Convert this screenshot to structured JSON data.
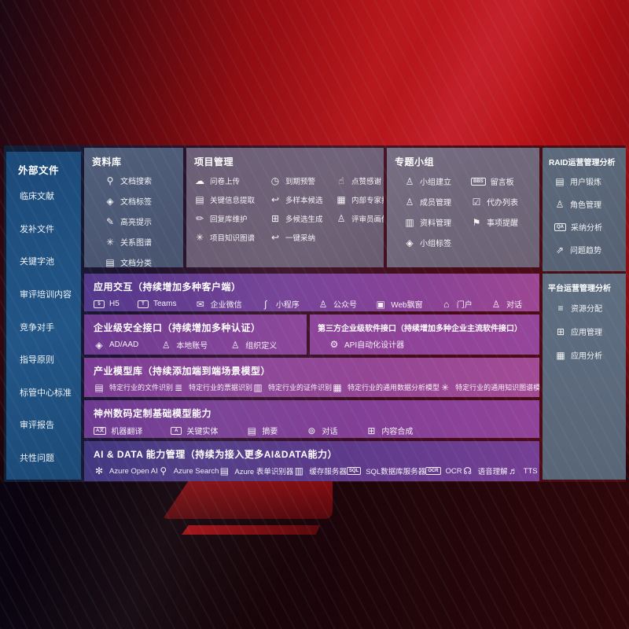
{
  "palette": {
    "background_red": "#b30f14",
    "left_panel_blue": "#1e4f80",
    "slate_panel": "#5d6a7c",
    "mauve_panel": "#6e6176",
    "purple_row": "#7b3b92",
    "indigo_row": "#41377f"
  },
  "left_panel": {
    "title": "外部文件",
    "items": [
      {
        "label": "临床文献"
      },
      {
        "label": "发补文件"
      },
      {
        "label": "关键字池"
      },
      {
        "label": "审评培训内容"
      },
      {
        "label": "竞争对手"
      },
      {
        "label": "指导原则"
      },
      {
        "label": "标管中心标准"
      },
      {
        "label": "审评报告"
      },
      {
        "label": "共性问题"
      }
    ]
  },
  "repo_panel": {
    "title": "资料库",
    "items": [
      {
        "icon": "document-search-icon",
        "glyph": "⚲",
        "label": "文档搜索"
      },
      {
        "icon": "tag-icon",
        "glyph": "◈",
        "label": "文档标签"
      },
      {
        "icon": "highlight-pen-icon",
        "glyph": "✎",
        "label": "高亮提示"
      },
      {
        "icon": "relation-graph-icon",
        "glyph": "✳",
        "label": "关系图谱"
      },
      {
        "icon": "document-category-icon",
        "glyph": "▤",
        "label": "文档分类"
      }
    ]
  },
  "project_panel": {
    "title": "项目管理",
    "items": [
      {
        "icon": "cloud-upload-icon",
        "glyph": "☁",
        "label": "问卷上传"
      },
      {
        "icon": "alarm-warning-icon",
        "glyph": "◷",
        "label": "到期预警"
      },
      {
        "icon": "thumbs-up-icon",
        "glyph": "☝",
        "label": "点赞感谢"
      },
      {
        "icon": "key-info-extract-icon",
        "glyph": "▤",
        "label": "关键信息提取"
      },
      {
        "icon": "multi-sample-icon",
        "glyph": "↩",
        "label": "多样本候选"
      },
      {
        "icon": "expert-ranking-icon",
        "glyph": "▦",
        "label": "内部专家排名"
      },
      {
        "icon": "reply-maintain-icon",
        "glyph": "✏",
        "label": "回复库维护"
      },
      {
        "icon": "multi-generate-icon",
        "glyph": "⊞",
        "label": "多候选生成"
      },
      {
        "icon": "reviewer-profile-icon",
        "glyph": "♙",
        "label": "评审员画像"
      },
      {
        "icon": "knowledge-graph-icon",
        "glyph": "✳",
        "label": "项目知识图谱"
      },
      {
        "icon": "one-click-adopt-icon",
        "glyph": "↩",
        "label": "一键采纳"
      }
    ]
  },
  "group_panel": {
    "title": "专题小组",
    "items": [
      {
        "icon": "team-create-icon",
        "glyph": "♙",
        "label": "小组建立"
      },
      {
        "icon": "message-board-icon",
        "glyph": "BBS",
        "boxed": true,
        "label": "留言板"
      },
      {
        "icon": "member-manage-icon",
        "glyph": "♙",
        "label": "成员管理"
      },
      {
        "icon": "todo-list-icon",
        "glyph": "☑",
        "label": "代办列表"
      },
      {
        "icon": "material-manage-icon",
        "glyph": "▥",
        "label": "资料管理"
      },
      {
        "icon": "reminder-bell-icon",
        "glyph": "⚑",
        "label": "事项提醒"
      },
      {
        "icon": "group-tag-icon",
        "glyph": "◈",
        "label": "小组标签"
      }
    ]
  },
  "raid_panel": {
    "title": "RAID运营管理分析",
    "items": [
      {
        "icon": "user-card-icon",
        "glyph": "▤",
        "label": "用户锻炼"
      },
      {
        "icon": "role-manage-icon",
        "glyph": "♙",
        "label": "角色管理"
      },
      {
        "icon": "adoption-analysis-icon",
        "glyph": "QA",
        "boxed": true,
        "label": "采纳分析"
      },
      {
        "icon": "issue-trend-icon",
        "glyph": "⇗",
        "label": "问题趋势"
      }
    ]
  },
  "platform_panel": {
    "title": "平台运营管理分析",
    "items": [
      {
        "icon": "resource-allocation-icon",
        "glyph": "≡",
        "label": "资源分配"
      },
      {
        "icon": "app-manage-icon",
        "glyph": "⊞",
        "label": "应用管理"
      },
      {
        "icon": "app-analysis-icon",
        "glyph": "▦",
        "label": "应用分析"
      }
    ]
  },
  "interaction_row": {
    "title": "应用交互（持续增加多种客户端）",
    "items": [
      {
        "icon": "html5-icon",
        "glyph": "5",
        "boxed": true,
        "label": "H5"
      },
      {
        "icon": "teams-icon",
        "glyph": "T",
        "boxed": true,
        "label": "Teams"
      },
      {
        "icon": "wechat-work-icon",
        "glyph": "✉",
        "label": "企业微信"
      },
      {
        "icon": "mini-program-icon",
        "glyph": "∫",
        "label": "小程序"
      },
      {
        "icon": "official-account-icon",
        "glyph": "♙",
        "label": "公众号"
      },
      {
        "icon": "web-popup-icon",
        "glyph": "▣",
        "label": "Web飘窗"
      },
      {
        "icon": "portal-icon",
        "glyph": "⌂",
        "label": "门户"
      },
      {
        "icon": "dialogue-people-icon",
        "glyph": "♙",
        "label": "对话"
      }
    ]
  },
  "security_row": {
    "title": "企业级安全接口（持续增加多种认证）",
    "items": [
      {
        "icon": "azure-ad-icon",
        "glyph": "◈",
        "label": "AD/AAD"
      },
      {
        "icon": "local-account-icon",
        "glyph": "♙",
        "label": "本地账号"
      },
      {
        "icon": "org-define-icon",
        "glyph": "♙",
        "label": "组织定义"
      }
    ]
  },
  "thirdparty_row": {
    "title": "第三方企业级软件接口（持续增加多种企业主流软件接口）",
    "items": [
      {
        "icon": "api-designer-gear-icon",
        "glyph": "⚙",
        "label": "API自动化设计器"
      }
    ]
  },
  "industry_row": {
    "title": "产业模型库（持续添加端到端场景模型）",
    "items": [
      {
        "icon": "doc-recognition-icon",
        "glyph": "▤",
        "label": "特定行业的文件识别"
      },
      {
        "icon": "receipt-recognition-icon",
        "glyph": "≣",
        "label": "特定行业的票据识别"
      },
      {
        "icon": "idcard-recognition-icon",
        "glyph": "▥",
        "label": "特定行业的证件识别"
      },
      {
        "icon": "data-analysis-model-icon",
        "glyph": "▦",
        "label": "特定行业的通用数据分析模型"
      },
      {
        "icon": "knowledge-graph-model-icon",
        "glyph": "✳",
        "label": "特定行业的通用知识图谱模型"
      }
    ]
  },
  "dc_model_row": {
    "title": "神州数码定制基础模型能力",
    "items": [
      {
        "icon": "machine-translation-icon",
        "glyph": "A文",
        "boxed": true,
        "label": "机器翻译"
      },
      {
        "icon": "key-entity-icon",
        "glyph": "A",
        "boxed": true,
        "label": "关键实体"
      },
      {
        "icon": "summary-icon",
        "glyph": "▤",
        "label": "摘要"
      },
      {
        "icon": "dialogue-bubble-icon",
        "glyph": "⊚",
        "label": "对话"
      },
      {
        "icon": "content-synthesis-icon",
        "glyph": "⊞",
        "label": "内容合成"
      }
    ]
  },
  "aidata_row": {
    "title": "AI & DATA 能力管理（持续为接入更多AI&DATA能力）",
    "items": [
      {
        "icon": "openai-icon",
        "glyph": "✻",
        "label": "Azure Open AI"
      },
      {
        "icon": "azure-search-icon",
        "glyph": "⚲",
        "label": "Azure Search"
      },
      {
        "icon": "form-recognizer-icon",
        "glyph": "▤",
        "label": "Azure 表单识别器"
      },
      {
        "icon": "cache-server-icon",
        "glyph": "▥",
        "label": "缓存服务器"
      },
      {
        "icon": "sql-database-icon",
        "glyph": "SQL",
        "boxed": true,
        "label": "SQL数据库服务器"
      },
      {
        "icon": "ocr-icon",
        "glyph": "OCR",
        "boxed": true,
        "label": "OCR"
      },
      {
        "icon": "speech-understanding-icon",
        "glyph": "☊",
        "label": "语音理解"
      },
      {
        "icon": "tts-icon",
        "glyph": "♬",
        "label": "TTS"
      }
    ]
  }
}
